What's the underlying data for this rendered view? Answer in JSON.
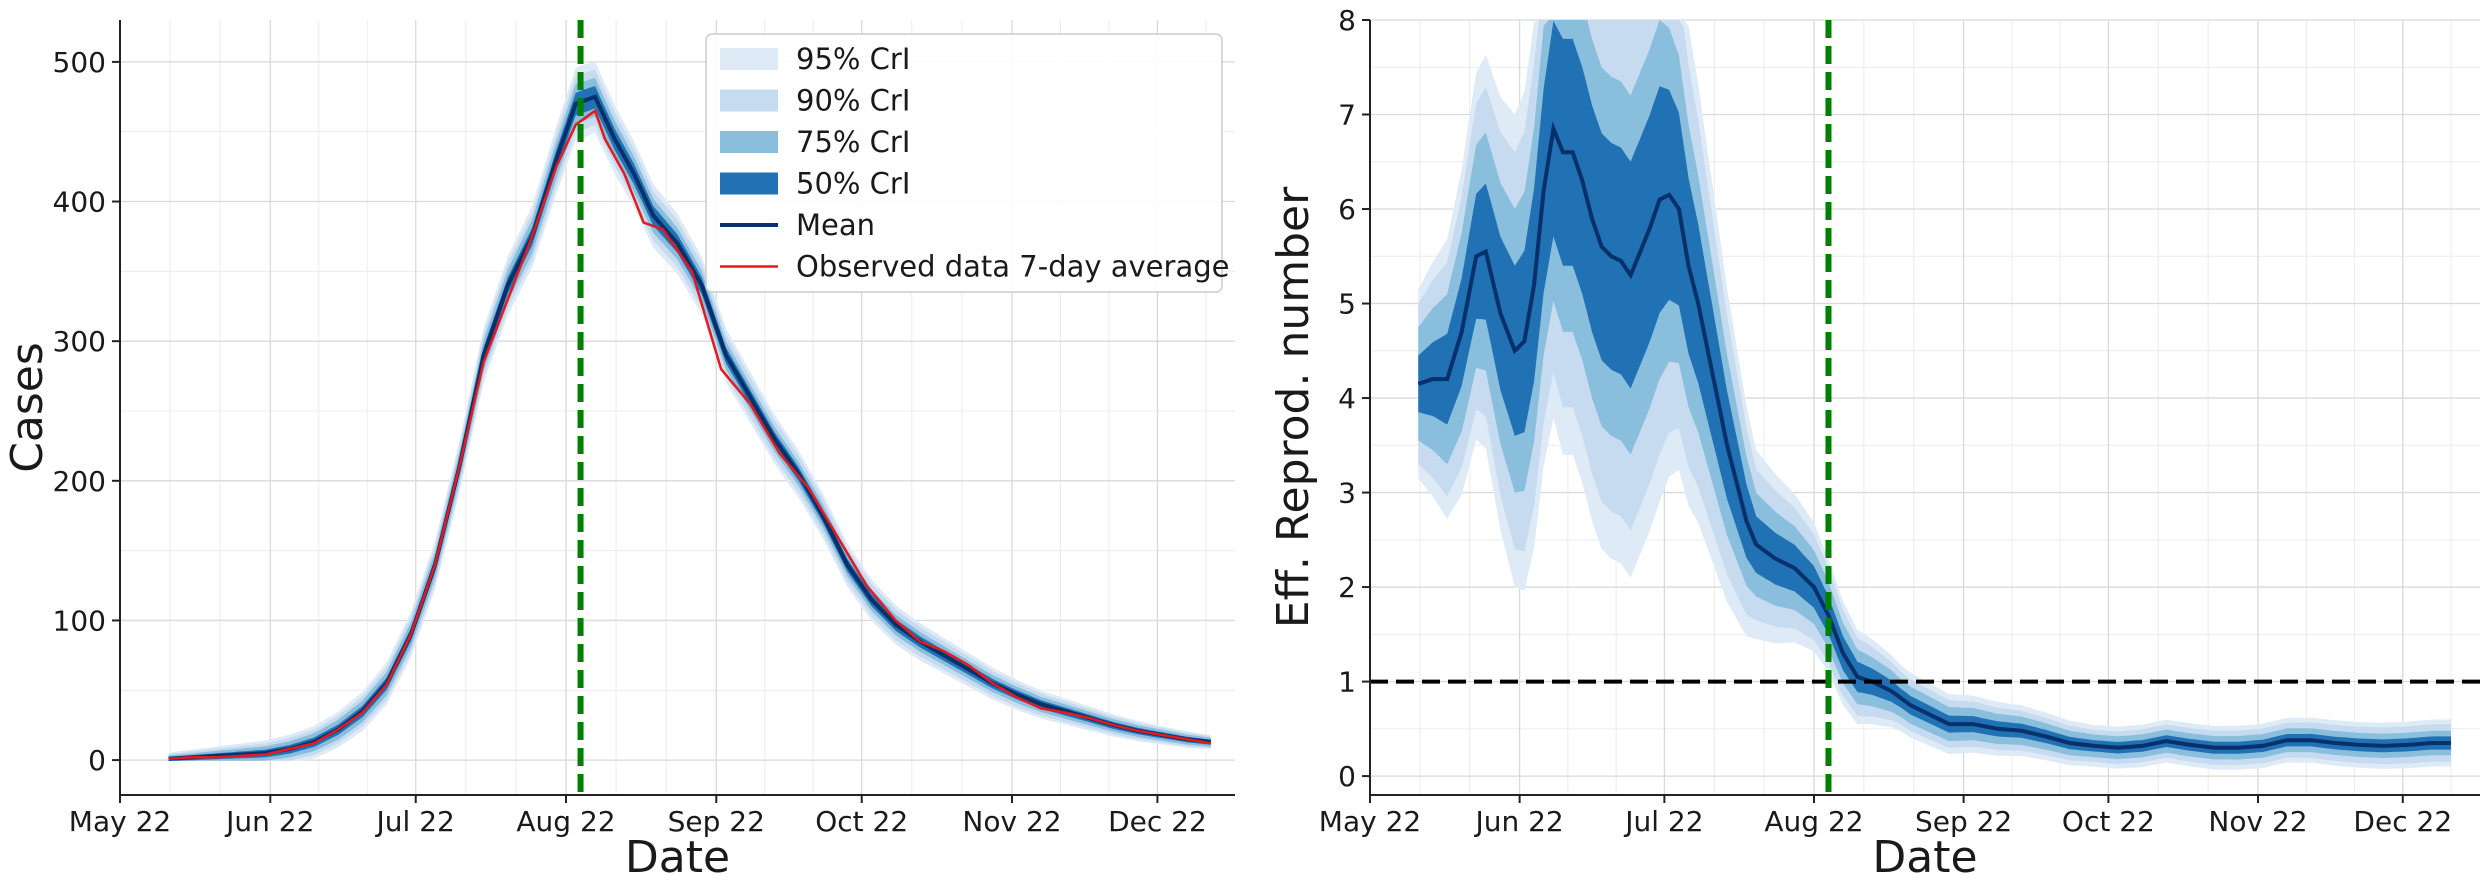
{
  "chart_data": [
    {
      "type": "line",
      "id": "cases",
      "xlabel": "Date",
      "ylabel": "Cases",
      "ylim": [
        -25,
        530
      ],
      "yticks": [
        0,
        100,
        200,
        300,
        400,
        500
      ],
      "xlim_days": [
        0,
        230
      ],
      "xticks": [
        {
          "label": "May 22",
          "day": 0
        },
        {
          "label": "Jun 22",
          "day": 31
        },
        {
          "label": "Jul 22",
          "day": 61
        },
        {
          "label": "Aug 22",
          "day": 92
        },
        {
          "label": "Sep 22",
          "day": 123
        },
        {
          "label": "Oct 22",
          "day": 153
        },
        {
          "label": "Nov 22",
          "day": 184
        },
        {
          "label": "Dec 22",
          "day": 214
        }
      ],
      "vline_day": 95,
      "legend": {
        "position": "top-right",
        "entries": [
          {
            "label": "95% CrI",
            "kind": "band",
            "color": "#deebf7"
          },
          {
            "label": "90% CrI",
            "kind": "band",
            "color": "#c6dbef"
          },
          {
            "label": "75% CrI",
            "kind": "band",
            "color": "#89bedc"
          },
          {
            "label": "50% CrI",
            "kind": "band",
            "color": "#2171b5"
          },
          {
            "label": "Mean",
            "kind": "line",
            "color": "#08306b"
          },
          {
            "label": "Observed data 7-day average",
            "kind": "line",
            "color": "#e41a1c"
          }
        ]
      },
      "bands": [
        {
          "ci": "95% CrI",
          "half_widths": [
            [
              0,
              2
            ],
            [
              85,
              22
            ],
            [
              95,
              26
            ],
            [
              130,
              18
            ],
            [
              225,
              5
            ]
          ]
        },
        {
          "ci": "90% CrI",
          "half_widths": [
            [
              0,
              1.5
            ],
            [
              85,
              17
            ],
            [
              95,
              20
            ],
            [
              130,
              14
            ],
            [
              225,
              4
            ]
          ]
        },
        {
          "ci": "75% CrI",
          "half_widths": [
            [
              0,
              1
            ],
            [
              85,
              12
            ],
            [
              95,
              14
            ],
            [
              130,
              9
            ],
            [
              225,
              3
            ]
          ]
        },
        {
          "ci": "50% CrI",
          "half_widths": [
            [
              0,
              0.6
            ],
            [
              85,
              6
            ],
            [
              95,
              8
            ],
            [
              130,
              5
            ],
            [
              225,
              1.5
            ]
          ]
        }
      ],
      "series": [
        {
          "name": "Mean",
          "points": [
            [
              10,
              1
            ],
            [
              15,
              2
            ],
            [
              20,
              3
            ],
            [
              25,
              4
            ],
            [
              30,
              5
            ],
            [
              35,
              8
            ],
            [
              40,
              13
            ],
            [
              45,
              22
            ],
            [
              50,
              35
            ],
            [
              55,
              55
            ],
            [
              60,
              90
            ],
            [
              65,
              140
            ],
            [
              70,
              210
            ],
            [
              75,
              290
            ],
            [
              80,
              340
            ],
            [
              85,
              375
            ],
            [
              90,
              430
            ],
            [
              94,
              470
            ],
            [
              98,
              475
            ],
            [
              102,
              445
            ],
            [
              106,
              420
            ],
            [
              110,
              390
            ],
            [
              115,
              370
            ],
            [
              120,
              340
            ],
            [
              125,
              290
            ],
            [
              130,
              260
            ],
            [
              135,
              230
            ],
            [
              140,
              205
            ],
            [
              145,
              175
            ],
            [
              150,
              140
            ],
            [
              155,
              115
            ],
            [
              160,
              97
            ],
            [
              165,
              85
            ],
            [
              170,
              75
            ],
            [
              175,
              65
            ],
            [
              180,
              55
            ],
            [
              185,
              47
            ],
            [
              190,
              40
            ],
            [
              195,
              35
            ],
            [
              200,
              30
            ],
            [
              205,
              25
            ],
            [
              210,
              21
            ],
            [
              215,
              18
            ],
            [
              220,
              15
            ],
            [
              225,
              13
            ]
          ]
        },
        {
          "name": "Observed data 7-day average",
          "points": [
            [
              10,
              1
            ],
            [
              15,
              2
            ],
            [
              20,
              2
            ],
            [
              25,
              3
            ],
            [
              30,
              4
            ],
            [
              35,
              8
            ],
            [
              40,
              12
            ],
            [
              45,
              22
            ],
            [
              50,
              34
            ],
            [
              55,
              54
            ],
            [
              60,
              90
            ],
            [
              65,
              140
            ],
            [
              70,
              210
            ],
            [
              75,
              285
            ],
            [
              80,
              330
            ],
            [
              85,
              375
            ],
            [
              90,
              425
            ],
            [
              94,
              455
            ],
            [
              98,
              465
            ],
            [
              100,
              445
            ],
            [
              104,
              420
            ],
            [
              108,
              385
            ],
            [
              112,
              380
            ],
            [
              118,
              350
            ],
            [
              124,
              280
            ],
            [
              130,
              255
            ],
            [
              136,
              220
            ],
            [
              142,
              195
            ],
            [
              148,
              160
            ],
            [
              154,
              125
            ],
            [
              160,
              100
            ],
            [
              165,
              85
            ],
            [
              170,
              78
            ],
            [
              175,
              68
            ],
            [
              180,
              55
            ],
            [
              185,
              45
            ],
            [
              190,
              37
            ],
            [
              195,
              34
            ],
            [
              200,
              30
            ],
            [
              205,
              25
            ],
            [
              210,
              21
            ],
            [
              215,
              18
            ],
            [
              220,
              15
            ],
            [
              225,
              12
            ]
          ]
        }
      ]
    },
    {
      "type": "line",
      "id": "rt",
      "xlabel": "Date",
      "ylabel": "Eff. Reprod. number",
      "ylim": [
        -0.2,
        8
      ],
      "yticks": [
        0,
        1,
        2,
        3,
        4,
        5,
        6,
        7,
        8
      ],
      "xlim_days": [
        0,
        230
      ],
      "xticks": [
        {
          "label": "May 22",
          "day": 0
        },
        {
          "label": "Jun 22",
          "day": 31
        },
        {
          "label": "Jul 22",
          "day": 61
        },
        {
          "label": "Aug 22",
          "day": 92
        },
        {
          "label": "Sep 22",
          "day": 123
        },
        {
          "label": "Oct 22",
          "day": 153
        },
        {
          "label": "Nov 22",
          "day": 184
        },
        {
          "label": "Dec 22",
          "day": 214
        }
      ],
      "vline_day": 95,
      "hline_y": 1,
      "band_colors": [
        "#deebf7",
        "#c6dbef",
        "#89bedc",
        "#2171b5"
      ],
      "mean_color": "#08306b",
      "mean": [
        [
          10,
          4.15
        ],
        [
          13,
          4.2
        ],
        [
          16,
          4.2
        ],
        [
          19,
          4.7
        ],
        [
          22,
          5.5
        ],
        [
          24,
          5.55
        ],
        [
          27,
          4.9
        ],
        [
          30,
          4.5
        ],
        [
          32,
          4.6
        ],
        [
          34,
          5.2
        ],
        [
          36,
          6.2
        ],
        [
          38,
          6.85
        ],
        [
          40,
          6.6
        ],
        [
          42,
          6.6
        ],
        [
          44,
          6.3
        ],
        [
          46,
          5.9
        ],
        [
          48,
          5.6
        ],
        [
          50,
          5.5
        ],
        [
          52,
          5.45
        ],
        [
          54,
          5.3
        ],
        [
          56,
          5.55
        ],
        [
          58,
          5.8
        ],
        [
          60,
          6.1
        ],
        [
          62,
          6.15
        ],
        [
          64,
          6.0
        ],
        [
          66,
          5.4
        ],
        [
          68,
          5.0
        ],
        [
          70,
          4.5
        ],
        [
          72,
          4.0
        ],
        [
          74,
          3.5
        ],
        [
          76,
          3.1
        ],
        [
          78,
          2.7
        ],
        [
          80,
          2.45
        ],
        [
          84,
          2.3
        ],
        [
          88,
          2.2
        ],
        [
          92,
          2.0
        ],
        [
          95,
          1.7
        ],
        [
          98,
          1.3
        ],
        [
          101,
          1.05
        ],
        [
          104,
          1.0
        ],
        [
          108,
          0.9
        ],
        [
          112,
          0.75
        ],
        [
          116,
          0.65
        ],
        [
          120,
          0.55
        ],
        [
          125,
          0.55
        ],
        [
          130,
          0.5
        ],
        [
          135,
          0.48
        ],
        [
          140,
          0.42
        ],
        [
          145,
          0.35
        ],
        [
          150,
          0.32
        ],
        [
          155,
          0.3
        ],
        [
          160,
          0.32
        ],
        [
          165,
          0.37
        ],
        [
          170,
          0.33
        ],
        [
          175,
          0.3
        ],
        [
          180,
          0.3
        ],
        [
          185,
          0.32
        ],
        [
          190,
          0.38
        ],
        [
          195,
          0.38
        ],
        [
          200,
          0.35
        ],
        [
          205,
          0.33
        ],
        [
          210,
          0.32
        ],
        [
          215,
          0.33
        ],
        [
          220,
          0.35
        ],
        [
          224,
          0.35
        ]
      ],
      "band_widths": [
        [
          10,
          [
            1.0,
            0.85,
            0.6,
            0.3
          ]
        ],
        [
          20,
          [
            1.8,
            1.5,
            1.1,
            0.6
          ]
        ],
        [
          40,
          [
            3.2,
            2.7,
            1.9,
            1.2
          ]
        ],
        [
          60,
          [
            3.2,
            2.7,
            1.9,
            1.2
          ]
        ],
        [
          80,
          [
            1.0,
            0.8,
            0.55,
            0.3
          ]
        ],
        [
          95,
          [
            0.6,
            0.5,
            0.35,
            0.2
          ]
        ],
        [
          110,
          [
            0.35,
            0.28,
            0.2,
            0.1
          ]
        ],
        [
          150,
          [
            0.22,
            0.17,
            0.12,
            0.06
          ]
        ],
        [
          224,
          [
            0.25,
            0.2,
            0.13,
            0.07
          ]
        ]
      ]
    }
  ]
}
